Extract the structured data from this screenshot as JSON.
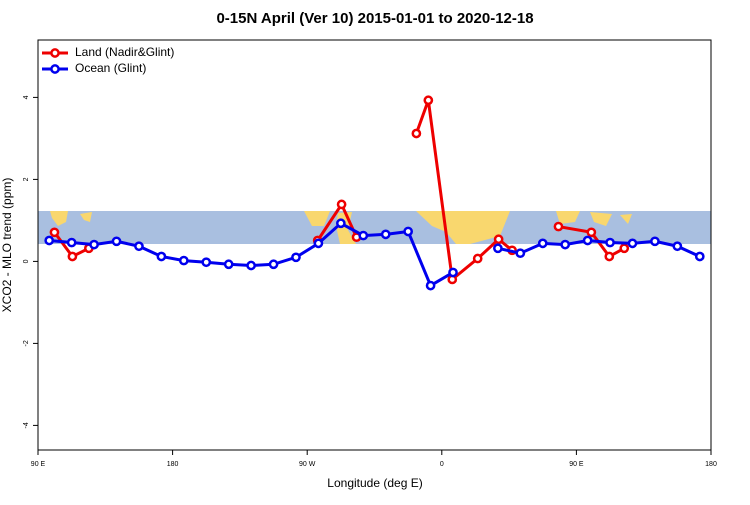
{
  "chart_data": {
    "type": "line",
    "title": "0-15N April (Ver 10)   2015-01-01 to 2020-12-18",
    "xlabel": "Longitude (deg E)",
    "ylabel": "XCO2 - MLO trend (ppm)",
    "xlim": [
      90,
      540
    ],
    "ylim": [
      -4.6,
      5.4
    ],
    "xticks": [
      {
        "value": 90,
        "label": "90 E"
      },
      180,
      {
        "value": 270,
        "label": "90 W"
      },
      {
        "value": 360,
        "label": "0"
      },
      {
        "value": 450,
        "label": "90 E"
      },
      {
        "value": 540,
        "label": "180"
      }
    ],
    "yticks": [
      -4,
      -2,
      0,
      2,
      4
    ],
    "legend": "top-left",
    "series": [
      {
        "name": "Land (Nadir&Glint)",
        "color": "#ee0000",
        "x": [
          101,
          113,
          124,
          null,
          277,
          293,
          303,
          null,
          343,
          351,
          367,
          384,
          398,
          407,
          null,
          438,
          460,
          472,
          482
        ],
        "values": [
          0.71,
          0.12,
          0.32,
          null,
          0.51,
          1.39,
          0.59,
          null,
          3.12,
          3.93,
          -0.44,
          0.07,
          0.54,
          0.27,
          null,
          0.85,
          0.71,
          0.12,
          0.32
        ]
      },
      {
        "name": "Ocean (Glint)",
        "color": "#0000ee",
        "x": [
          97.5,
          112.5,
          127.5,
          142.5,
          157.5,
          172.5,
          187.5,
          202.5,
          217.5,
          232.5,
          247.5,
          262.5,
          277.5,
          292.5,
          307.5,
          322.5,
          337.5,
          352.5,
          367.5,
          null,
          397.5,
          412.5,
          427.5,
          442.5,
          457.5,
          472.5,
          487.5,
          502.5,
          517.5,
          532.5
        ],
        "values": [
          0.51,
          0.46,
          0.41,
          0.49,
          0.37,
          0.12,
          0.02,
          -0.02,
          -0.07,
          -0.1,
          -0.07,
          0.1,
          0.44,
          0.93,
          0.63,
          0.66,
          0.73,
          -0.59,
          -0.27,
          null,
          0.32,
          0.2,
          0.44,
          0.41,
          0.51,
          0.46,
          0.44,
          0.49,
          0.37,
          0.12
        ]
      }
    ]
  }
}
